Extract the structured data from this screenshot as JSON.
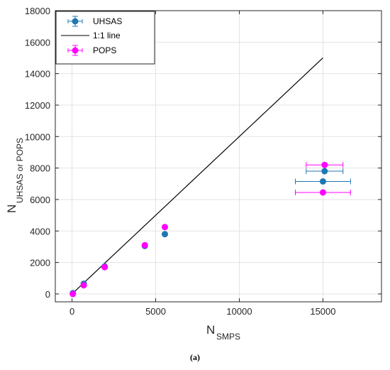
{
  "chart_data": {
    "type": "scatter",
    "xlabel": {
      "main": "N",
      "sub": "SMPS"
    },
    "ylabel": {
      "main": "N",
      "sub": "UHSAS or POPS"
    },
    "xlim": [
      -1000,
      18500
    ],
    "ylim": [
      -500,
      18000
    ],
    "xticks": [
      0,
      5000,
      10000,
      15000
    ],
    "yticks": [
      0,
      2000,
      4000,
      6000,
      8000,
      10000,
      12000,
      14000,
      16000,
      18000
    ],
    "grid": true,
    "legend_position": "top-left",
    "reference_line": {
      "name": "1:1 line",
      "x": [
        0,
        15000
      ],
      "y": [
        0,
        15000
      ],
      "color": "#000000"
    },
    "series": [
      {
        "name": "UHSAS",
        "color": "#1f77b4",
        "points": [
          {
            "x": 50,
            "y": 50
          },
          {
            "x": 700,
            "y": 650
          },
          {
            "x": 1950,
            "y": 1750
          },
          {
            "x": 4350,
            "y": 3050
          },
          {
            "x": 5550,
            "y": 3800
          },
          {
            "x": 15000,
            "y": 7150,
            "xerr": 1650
          },
          {
            "x": 15100,
            "y": 7800,
            "xerr": 1100
          }
        ]
      },
      {
        "name": "POPS",
        "color": "#ff00ff",
        "points": [
          {
            "x": 50,
            "y": 0
          },
          {
            "x": 700,
            "y": 550
          },
          {
            "x": 1950,
            "y": 1700
          },
          {
            "x": 4350,
            "y": 3100
          },
          {
            "x": 5550,
            "y": 4250
          },
          {
            "x": 15000,
            "y": 6450,
            "xerr": 1650
          },
          {
            "x": 15100,
            "y": 8200,
            "xerr": 1100
          }
        ]
      }
    ]
  },
  "caption": "(a)"
}
